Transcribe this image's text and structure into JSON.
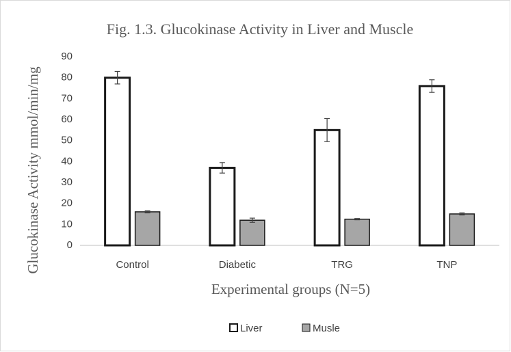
{
  "chart_data": {
    "type": "bar",
    "title": "Fig. 1.3. Glucokinase Activity in Liver and Muscle",
    "x_label": "Experimental groups (N=5)",
    "y_label": "Glucokinase Activity mmol/min/mg",
    "categories": [
      "Control",
      "Diabetic",
      "TRG",
      "TNP"
    ],
    "series": [
      {
        "name": "Liver",
        "color": "#ffffff",
        "values": [
          80,
          37,
          55,
          76
        ],
        "errors": [
          3,
          2.5,
          5.5,
          3
        ]
      },
      {
        "name": "Musle",
        "color": "#a6a6a6",
        "values": [
          16,
          12,
          12.5,
          15
        ],
        "errors": [
          0.5,
          1,
          0.3,
          0.5
        ]
      }
    ],
    "ylim": [
      0,
      90
    ],
    "yticks": [
      0,
      10,
      20,
      30,
      40,
      50,
      60,
      70,
      80,
      90
    ],
    "grid": false,
    "legend": "bottom"
  }
}
